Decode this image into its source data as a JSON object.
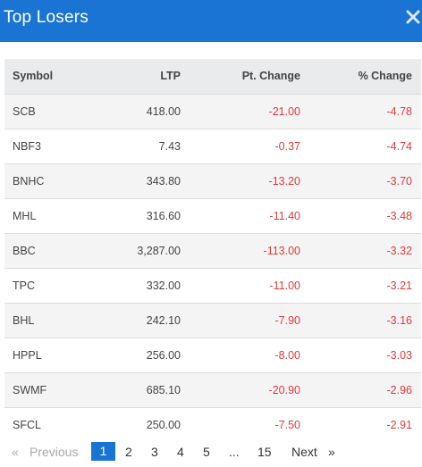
{
  "header": {
    "title": "Top Losers",
    "close_icon": "close-icon"
  },
  "table": {
    "columns": [
      "Symbol",
      "LTP",
      "Pt. Change",
      "% Change"
    ],
    "rows": [
      [
        "SCB",
        "418.00",
        "-21.00",
        "-4.78"
      ],
      [
        "NBF3",
        "7.43",
        "-0.37",
        "-4.74"
      ],
      [
        "BNHC",
        "343.80",
        "-13.20",
        "-3.70"
      ],
      [
        "MHL",
        "316.60",
        "-11.40",
        "-3.48"
      ],
      [
        "BBC",
        "3,287.00",
        "-113.00",
        "-3.32"
      ],
      [
        "TPC",
        "332.00",
        "-11.00",
        "-3.21"
      ],
      [
        "BHL",
        "242.10",
        "-7.90",
        "-3.16"
      ],
      [
        "HPPL",
        "256.00",
        "-8.00",
        "-3.03"
      ],
      [
        "SWMF",
        "685.10",
        "-20.90",
        "-2.96"
      ],
      [
        "SFCL",
        "250.00",
        "-7.50",
        "-2.91"
      ]
    ]
  },
  "pagination": {
    "first": "«",
    "previous": "Previous",
    "pages": [
      "1",
      "2",
      "3",
      "4",
      "5"
    ],
    "ellipsis": "...",
    "last_page": "15",
    "next": "Next",
    "last": "»",
    "current": "1"
  },
  "colors": {
    "accent": "#1a74d4",
    "negative": "#e03b3b"
  }
}
